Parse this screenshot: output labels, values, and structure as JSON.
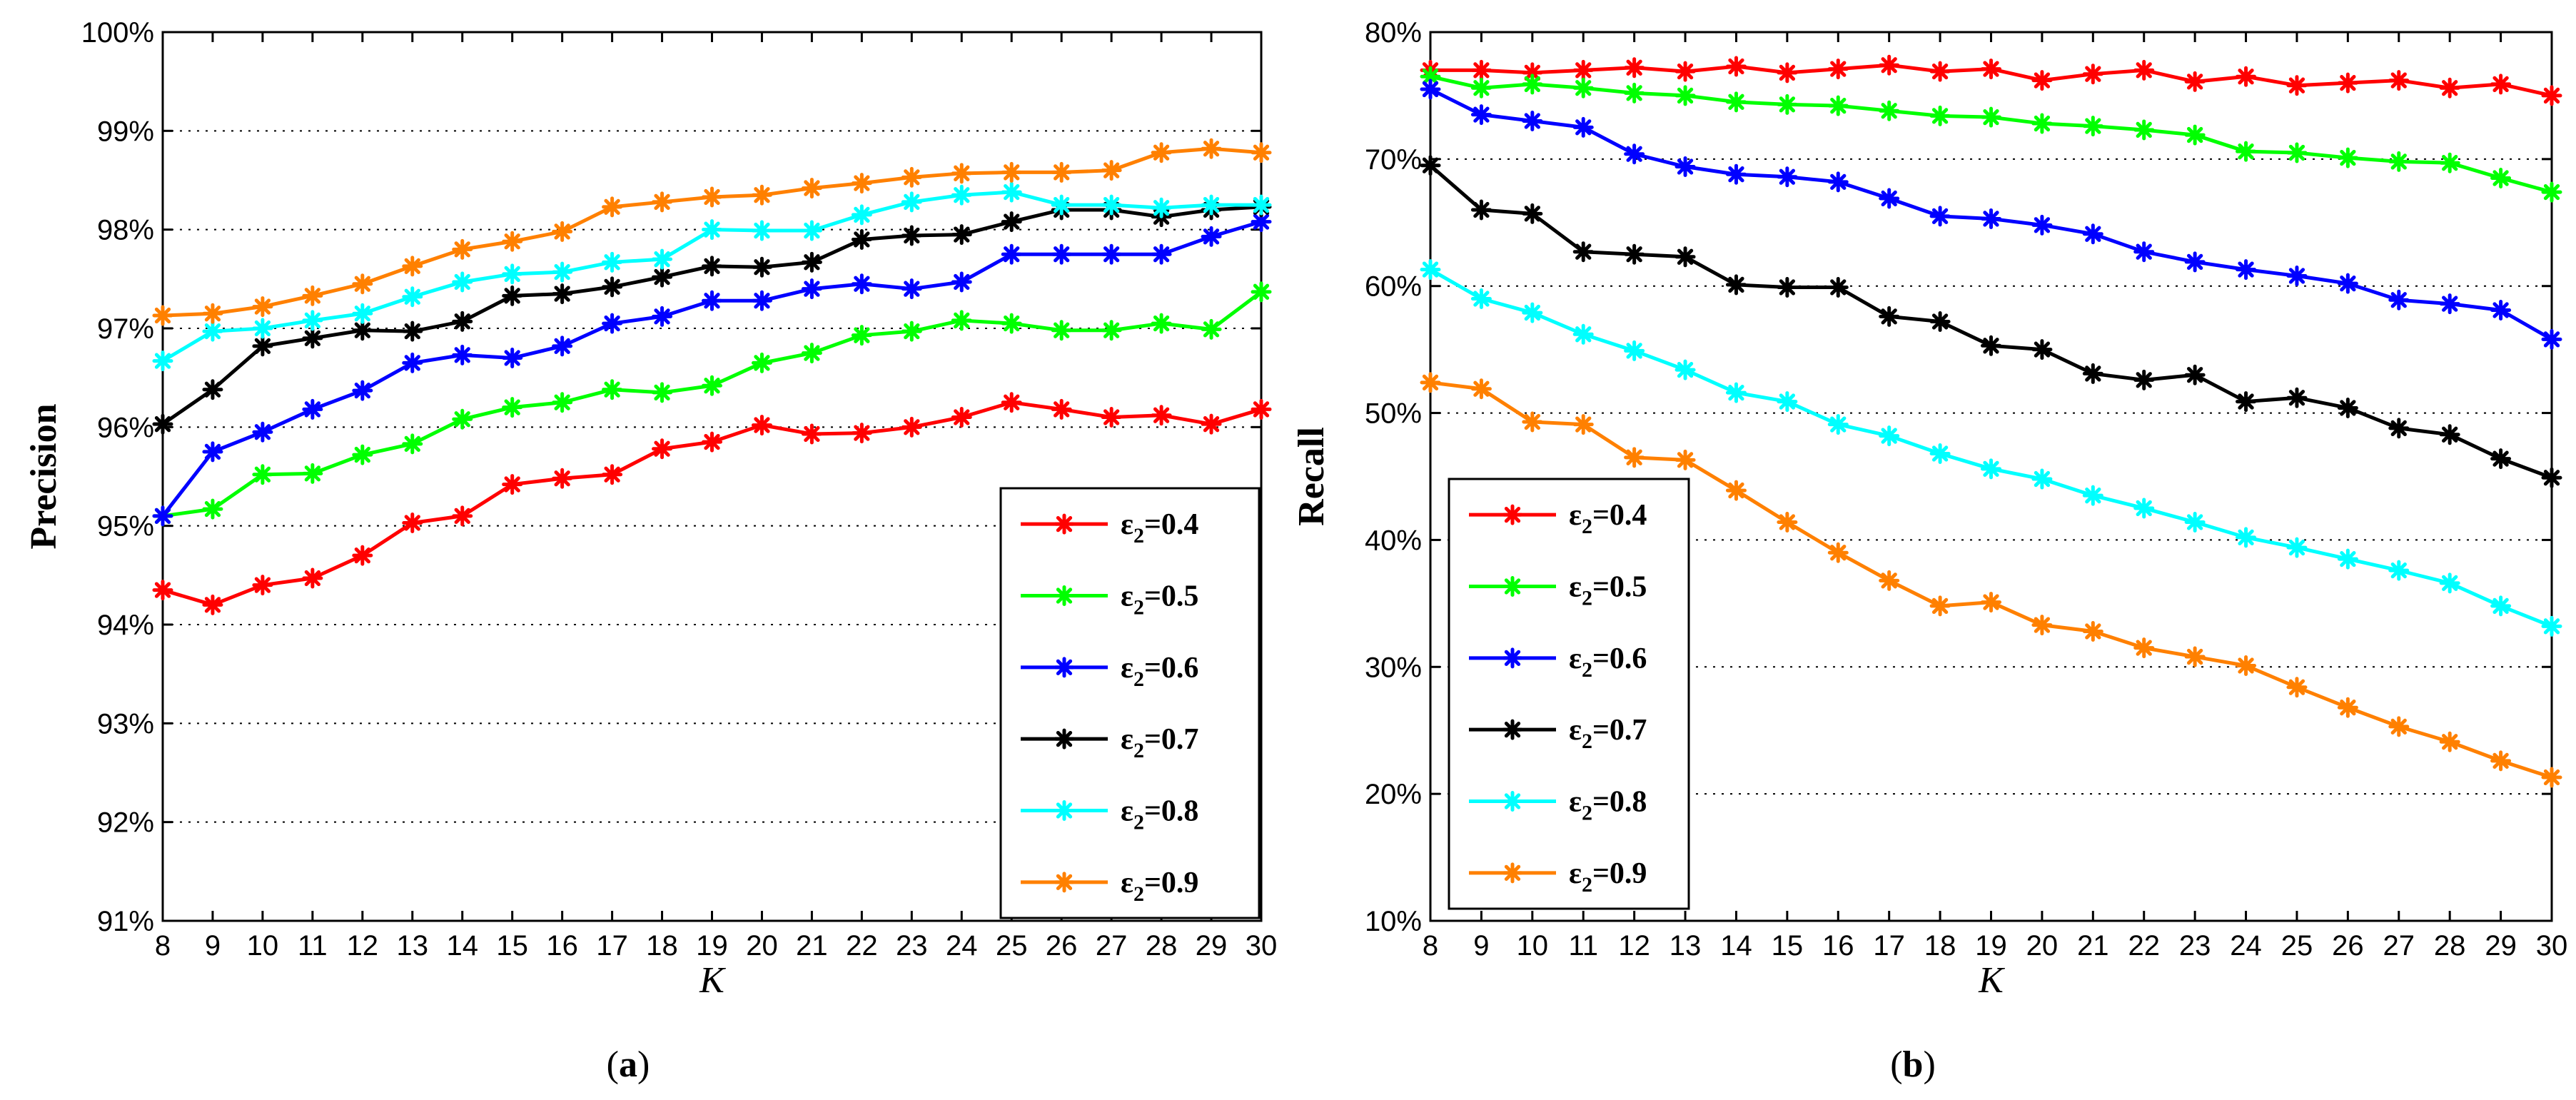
{
  "chart_data": [
    {
      "type": "line",
      "panel_label": "(a)",
      "caption": {
        "open": "(",
        "letter": "a",
        "close": ")"
      },
      "xlabel": "K",
      "ylabel": "Precision",
      "x": [
        8,
        9,
        10,
        11,
        12,
        13,
        14,
        15,
        16,
        17,
        18,
        19,
        20,
        21,
        22,
        23,
        24,
        25,
        26,
        27,
        28,
        29,
        30
      ],
      "xticks": [
        "8",
        "9",
        "10",
        "11",
        "12",
        "13",
        "14",
        "15",
        "16",
        "17",
        "18",
        "19",
        "20",
        "21",
        "22",
        "23",
        "24",
        "25",
        "26",
        "27",
        "28",
        "29",
        "30"
      ],
      "xlim": [
        8,
        30
      ],
      "ylim": [
        91,
        100
      ],
      "yticks": [
        91,
        92,
        93,
        94,
        95,
        96,
        97,
        98,
        99,
        100
      ],
      "ytick_labels": [
        "91%",
        "92%",
        "93%",
        "94%",
        "95%",
        "96%",
        "97%",
        "98%",
        "99%",
        "100%"
      ],
      "grid": true,
      "legend_position": "bottom-right",
      "series": [
        {
          "name": "ε2=0.4",
          "symbol": "ε",
          "sub": "2",
          "value_text": "=0.4",
          "color": "#ff0000",
          "values": [
            94.35,
            94.2,
            94.4,
            94.47,
            94.7,
            95.03,
            95.1,
            95.42,
            95.48,
            95.52,
            95.78,
            95.85,
            96.02,
            95.93,
            95.94,
            96.0,
            96.1,
            96.25,
            96.18,
            96.1,
            96.12,
            96.03,
            96.18
          ]
        },
        {
          "name": "ε2=0.5",
          "symbol": "ε",
          "sub": "2",
          "value_text": "=0.5",
          "color": "#00ff00",
          "values": [
            95.1,
            95.17,
            95.52,
            95.53,
            95.72,
            95.83,
            96.08,
            96.2,
            96.25,
            96.38,
            96.35,
            96.42,
            96.65,
            96.75,
            96.93,
            96.97,
            97.08,
            97.05,
            96.98,
            96.98,
            97.05,
            96.99,
            97.37
          ]
        },
        {
          "name": "ε2=0.6",
          "symbol": "ε",
          "sub": "2",
          "value_text": "=0.6",
          "color": "#0000ff",
          "values": [
            95.1,
            95.75,
            95.95,
            96.18,
            96.37,
            96.65,
            96.73,
            96.7,
            96.82,
            97.05,
            97.12,
            97.28,
            97.28,
            97.4,
            97.45,
            97.4,
            97.47,
            97.75,
            97.75,
            97.75,
            97.75,
            97.93,
            98.08
          ]
        },
        {
          "name": "ε2=0.7",
          "symbol": "ε",
          "sub": "2",
          "value_text": "=0.7",
          "color": "#000000",
          "values": [
            96.03,
            96.38,
            96.82,
            96.9,
            96.98,
            96.97,
            97.07,
            97.33,
            97.35,
            97.42,
            97.52,
            97.63,
            97.62,
            97.67,
            97.9,
            97.94,
            97.95,
            98.08,
            98.2,
            98.2,
            98.13,
            98.2,
            98.23
          ]
        },
        {
          "name": "ε2=0.8",
          "symbol": "ε",
          "sub": "2",
          "value_text": "=0.8",
          "color": "#00ffff",
          "values": [
            96.67,
            96.97,
            97.0,
            97.08,
            97.15,
            97.32,
            97.47,
            97.55,
            97.57,
            97.67,
            97.7,
            98.0,
            97.99,
            97.99,
            98.15,
            98.28,
            98.35,
            98.38,
            98.25,
            98.25,
            98.22,
            98.25,
            98.25
          ]
        },
        {
          "name": "ε2=0.9",
          "symbol": "ε",
          "sub": "2",
          "value_text": "=0.9",
          "color": "#ff8000",
          "values": [
            97.13,
            97.15,
            97.22,
            97.33,
            97.45,
            97.63,
            97.8,
            97.88,
            97.98,
            98.23,
            98.28,
            98.33,
            98.35,
            98.42,
            98.47,
            98.53,
            98.57,
            98.58,
            98.58,
            98.6,
            98.78,
            98.82,
            98.78
          ]
        }
      ]
    },
    {
      "type": "line",
      "panel_label": "(b)",
      "caption": {
        "open": "(",
        "letter": "b",
        "close": ")"
      },
      "xlabel": "K",
      "ylabel": "Recall",
      "x": [
        8,
        9,
        10,
        11,
        12,
        13,
        14,
        15,
        16,
        17,
        18,
        19,
        20,
        21,
        22,
        23,
        24,
        25,
        26,
        27,
        28,
        29,
        30
      ],
      "xticks": [
        "8",
        "9",
        "10",
        "11",
        "12",
        "13",
        "14",
        "15",
        "16",
        "17",
        "18",
        "19",
        "20",
        "21",
        "22",
        "23",
        "24",
        "25",
        "26",
        "27",
        "28",
        "29",
        "30"
      ],
      "xlim": [
        8,
        30
      ],
      "ylim": [
        10,
        80
      ],
      "yticks": [
        10,
        20,
        30,
        40,
        50,
        60,
        70,
        80
      ],
      "ytick_labels": [
        "10%",
        "20%",
        "30%",
        "40%",
        "50%",
        "60%",
        "70%",
        "80%"
      ],
      "grid": true,
      "legend_position": "bottom-left",
      "series": [
        {
          "name": "ε2=0.4",
          "symbol": "ε",
          "sub": "2",
          "value_text": "=0.4",
          "color": "#ff0000",
          "values": [
            77.0,
            77.0,
            76.8,
            77.0,
            77.2,
            76.9,
            77.3,
            76.8,
            77.1,
            77.4,
            76.9,
            77.1,
            76.2,
            76.7,
            77.0,
            76.1,
            76.5,
            75.8,
            76.0,
            76.2,
            75.6,
            75.9,
            75.0
          ]
        },
        {
          "name": "ε2=0.5",
          "symbol": "ε",
          "sub": "2",
          "value_text": "=0.5",
          "color": "#00ff00",
          "values": [
            76.5,
            75.6,
            75.9,
            75.6,
            75.2,
            75.0,
            74.5,
            74.3,
            74.2,
            73.8,
            73.4,
            73.3,
            72.8,
            72.6,
            72.3,
            71.9,
            70.6,
            70.5,
            70.1,
            69.8,
            69.7,
            68.5,
            67.4
          ]
        },
        {
          "name": "ε2=0.6",
          "symbol": "ε",
          "sub": "2",
          "value_text": "=0.6",
          "color": "#0000ff",
          "values": [
            75.5,
            73.5,
            73.0,
            72.5,
            70.4,
            69.4,
            68.8,
            68.6,
            68.2,
            66.9,
            65.5,
            65.3,
            64.8,
            64.1,
            62.7,
            61.9,
            61.3,
            60.8,
            60.2,
            58.9,
            58.6,
            58.1,
            55.8
          ]
        },
        {
          "name": "ε2=0.7",
          "symbol": "ε",
          "sub": "2",
          "value_text": "=0.7",
          "color": "#000000",
          "values": [
            69.5,
            66.0,
            65.7,
            62.7,
            62.5,
            62.3,
            60.1,
            59.9,
            59.9,
            57.6,
            57.2,
            55.3,
            55.0,
            53.1,
            52.6,
            53.0,
            50.9,
            51.2,
            50.4,
            48.8,
            48.3,
            46.4,
            44.9
          ]
        },
        {
          "name": "ε2=0.8",
          "symbol": "ε",
          "sub": "2",
          "value_text": "=0.8",
          "color": "#00ffff",
          "values": [
            61.3,
            59.0,
            57.9,
            56.2,
            54.9,
            53.4,
            51.6,
            50.9,
            49.1,
            48.2,
            46.8,
            45.6,
            44.8,
            43.5,
            42.5,
            41.4,
            40.2,
            39.4,
            38.5,
            37.6,
            36.6,
            34.8,
            33.2
          ]
        },
        {
          "name": "ε2=0.9",
          "symbol": "ε",
          "sub": "2",
          "value_text": "=0.9",
          "color": "#ff8000",
          "values": [
            52.4,
            51.9,
            49.3,
            49.1,
            46.5,
            46.3,
            43.9,
            41.4,
            39.0,
            36.8,
            34.8,
            35.1,
            33.3,
            32.8,
            31.5,
            30.8,
            30.1,
            28.4,
            26.8,
            25.3,
            24.1,
            22.6,
            21.3
          ]
        }
      ]
    }
  ]
}
